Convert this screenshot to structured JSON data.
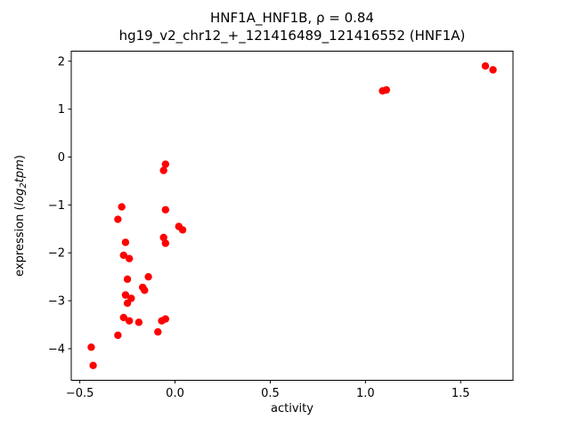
{
  "chart_data": {
    "type": "scatter",
    "title": "HNF1A_HNF1B, ρ = 0.84",
    "subtitle": "hg19_v2_chr12_+_121416489_121416552 (HNF1A)",
    "xlabel": "activity",
    "ylabel": "expression (log₂tpm)",
    "ylabel_parts": [
      {
        "t": "expression (",
        "i": false,
        "sub": false
      },
      {
        "t": "log",
        "i": true,
        "sub": false
      },
      {
        "t": "2",
        "i": true,
        "sub": true
      },
      {
        "t": "tpm",
        "i": true,
        "sub": false
      },
      {
        "t": ")",
        "i": false,
        "sub": false
      }
    ],
    "marker_color": "#ff0000",
    "axis_color": "#000000",
    "grid": false,
    "legend": null,
    "xlim": [
      -0.545,
      1.775
    ],
    "ylim": [
      -4.66,
      2.21
    ],
    "x_ticks": [
      -0.5,
      0.0,
      0.5,
      1.0,
      1.5
    ],
    "x_tick_labels": [
      "−0.5",
      "0.0",
      "0.5",
      "1.0",
      "1.5"
    ],
    "y_ticks": [
      -4,
      -3,
      -2,
      -1,
      0,
      1,
      2
    ],
    "y_tick_labels": [
      "−4",
      "−3",
      "−2",
      "−1",
      "0",
      "1",
      "2"
    ],
    "points": [
      [
        -0.43,
        -4.35
      ],
      [
        -0.44,
        -3.97
      ],
      [
        -0.3,
        -3.72
      ],
      [
        -0.28,
        -1.04
      ],
      [
        -0.3,
        -1.3
      ],
      [
        -0.26,
        -1.78
      ],
      [
        -0.27,
        -2.05
      ],
      [
        -0.24,
        -2.12
      ],
      [
        -0.25,
        -2.55
      ],
      [
        -0.26,
        -2.88
      ],
      [
        -0.23,
        -2.95
      ],
      [
        -0.25,
        -3.05
      ],
      [
        -0.27,
        -3.35
      ],
      [
        -0.24,
        -3.42
      ],
      [
        -0.19,
        -3.45
      ],
      [
        -0.17,
        -2.72
      ],
      [
        -0.16,
        -2.78
      ],
      [
        -0.14,
        -2.5
      ],
      [
        -0.09,
        -3.65
      ],
      [
        -0.07,
        -3.42
      ],
      [
        -0.05,
        -3.38
      ],
      [
        -0.05,
        -0.15
      ],
      [
        -0.06,
        -0.28
      ],
      [
        -0.05,
        -1.1
      ],
      [
        -0.06,
        -1.68
      ],
      [
        -0.05,
        -1.8
      ],
      [
        0.02,
        -1.45
      ],
      [
        0.04,
        -1.52
      ],
      [
        1.09,
        1.38
      ],
      [
        1.11,
        1.4
      ],
      [
        1.63,
        1.9
      ],
      [
        1.67,
        1.82
      ]
    ]
  }
}
